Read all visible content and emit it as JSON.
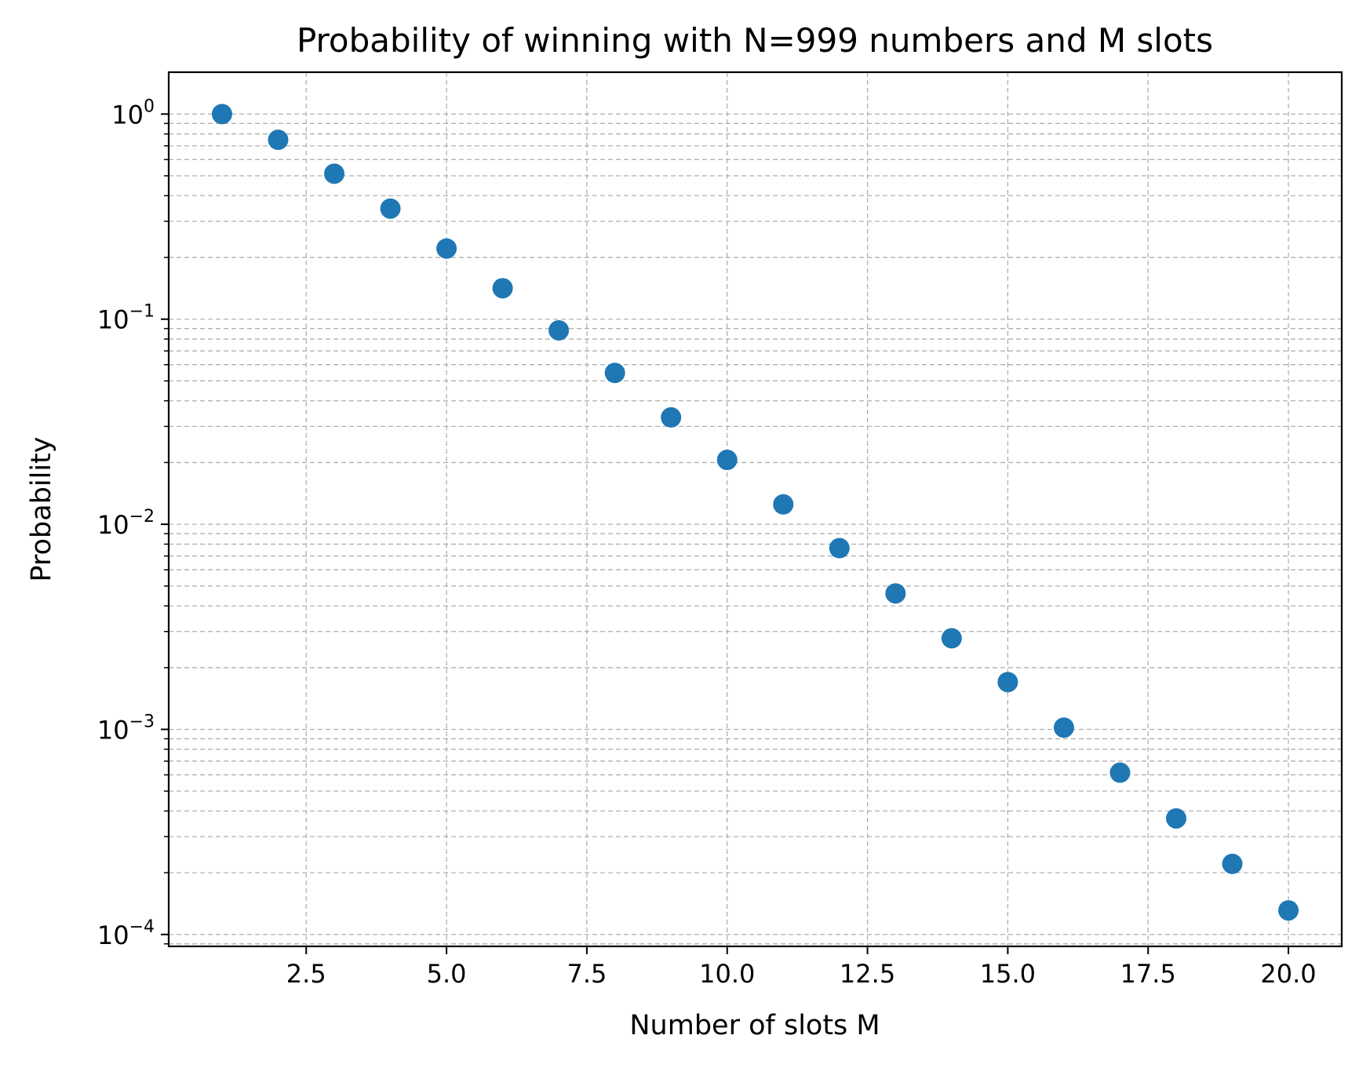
{
  "chart_data": {
    "type": "scatter",
    "title": "Probability of winning with N=999 numbers and M slots",
    "xlabel": "Number of slots M",
    "ylabel": "Probability",
    "xlim": [
      0.05,
      20.95
    ],
    "ylim": [
      8.75e-05,
      1.6
    ],
    "yscale": "log",
    "grid": true,
    "grid_style": "dashed",
    "marker_color": "#1f77b4",
    "x_ticks": [
      2.5,
      5.0,
      7.5,
      10.0,
      12.5,
      15.0,
      17.5,
      20.0
    ],
    "x_tick_labels": [
      "2.5",
      "5.0",
      "7.5",
      "10.0",
      "12.5",
      "15.0",
      "17.5",
      "20.0"
    ],
    "y_ticks": [
      {
        "value": 1,
        "base": "10",
        "exp": "0"
      },
      {
        "value": 0.1,
        "base": "10",
        "exp": "−1"
      },
      {
        "value": 0.01,
        "base": "10",
        "exp": "−2"
      },
      {
        "value": 0.001,
        "base": "10",
        "exp": "−3"
      },
      {
        "value": 0.0001,
        "base": "10",
        "exp": "−4"
      }
    ],
    "series": [
      {
        "x": [
          1,
          2,
          3,
          4,
          5,
          6,
          7,
          8,
          9,
          10,
          11,
          12,
          13,
          14,
          15,
          16,
          17,
          18,
          19,
          20
        ],
        "y": [
          1.0,
          0.749,
          0.512,
          0.346,
          0.221,
          0.1415,
          0.0882,
          0.0547,
          0.0332,
          0.0206,
          0.0125,
          0.00765,
          0.0046,
          0.00278,
          0.0017,
          0.00102,
          0.000615,
          0.000368,
          0.000221,
          0.000131
        ]
      }
    ]
  }
}
